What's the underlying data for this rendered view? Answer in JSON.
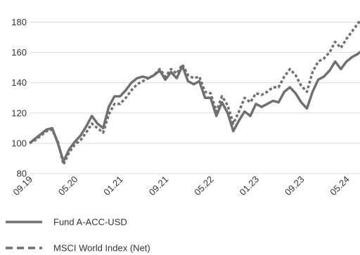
{
  "chart_data": {
    "type": "line",
    "title": "",
    "xlabel": "",
    "ylabel": "",
    "ylim": [
      80,
      190
    ],
    "yticks": [
      80,
      100,
      120,
      140,
      160,
      180
    ],
    "xticks": [
      {
        "label": "09.19",
        "index": 0
      },
      {
        "label": "05.20",
        "index": 8
      },
      {
        "label": "01.21",
        "index": 16
      },
      {
        "label": "09.21",
        "index": 24
      },
      {
        "label": "05.22",
        "index": 32
      },
      {
        "label": "01.23",
        "index": 40
      },
      {
        "label": "09.23",
        "index": 48
      },
      {
        "label": "05.24",
        "index": 56
      }
    ],
    "n_points": 60,
    "grid": "horizontal",
    "legend_position": "bottom-left",
    "series": [
      {
        "name": "Fund A-ACC-USD",
        "style": "solid",
        "color": "#707070",
        "values": [
          100,
          103,
          106,
          109,
          110,
          100,
          88,
          96,
          101,
          105,
          111,
          118,
          113,
          110,
          124,
          131,
          131,
          135,
          140,
          143,
          144,
          143,
          145,
          148,
          142,
          147,
          143,
          151,
          141,
          139,
          141,
          130,
          130,
          118,
          127,
          120,
          108,
          115,
          121,
          118,
          126,
          124,
          126,
          128,
          127,
          134,
          137,
          133,
          127,
          123,
          134,
          142,
          144,
          148,
          154,
          149,
          154,
          157,
          159,
          162
        ]
      },
      {
        "name": "MSCI World Index (Net)",
        "style": "dashed",
        "color": "#707070",
        "values": [
          100,
          102,
          105,
          108,
          109,
          101,
          86,
          94,
          99,
          102,
          107,
          113,
          110,
          107,
          119,
          126,
          126,
          130,
          135,
          139,
          141,
          143,
          145,
          149,
          144,
          149,
          146,
          152,
          145,
          143,
          144,
          134,
          133,
          121,
          131,
          125,
          113,
          121,
          130,
          127,
          133,
          132,
          134,
          137,
          137,
          144,
          149,
          145,
          138,
          134,
          147,
          154,
          156,
          160,
          167,
          163,
          169,
          174,
          179,
          184
        ]
      }
    ]
  }
}
